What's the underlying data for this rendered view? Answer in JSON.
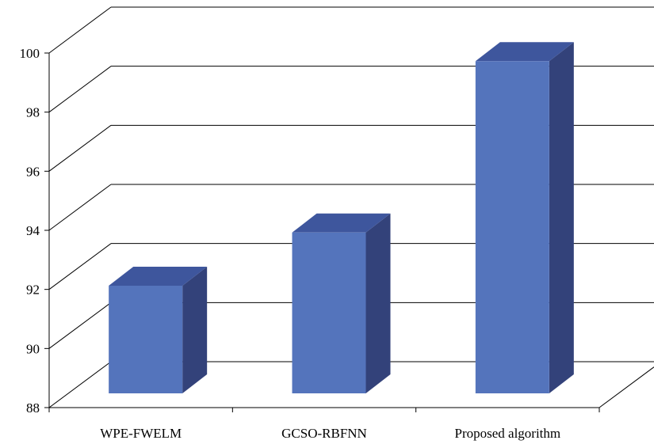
{
  "chart_data": {
    "type": "bar",
    "title": "",
    "xlabel": "",
    "ylabel": "",
    "categories": [
      "WPE-FWELM",
      "GCSO-RBFNN",
      "Proposed algorithm"
    ],
    "values": [
      92.5,
      94.3,
      100.1
    ],
    "ylim": [
      88,
      100
    ],
    "yticks": [
      88,
      90,
      92,
      94,
      96,
      98,
      100
    ],
    "grid": true,
    "three_d": true,
    "legend": "none",
    "colors": {
      "bar_front": "#5474BC",
      "bar_top": "#3E569D",
      "bar_side": "#33427A",
      "axis": "#000000"
    }
  }
}
